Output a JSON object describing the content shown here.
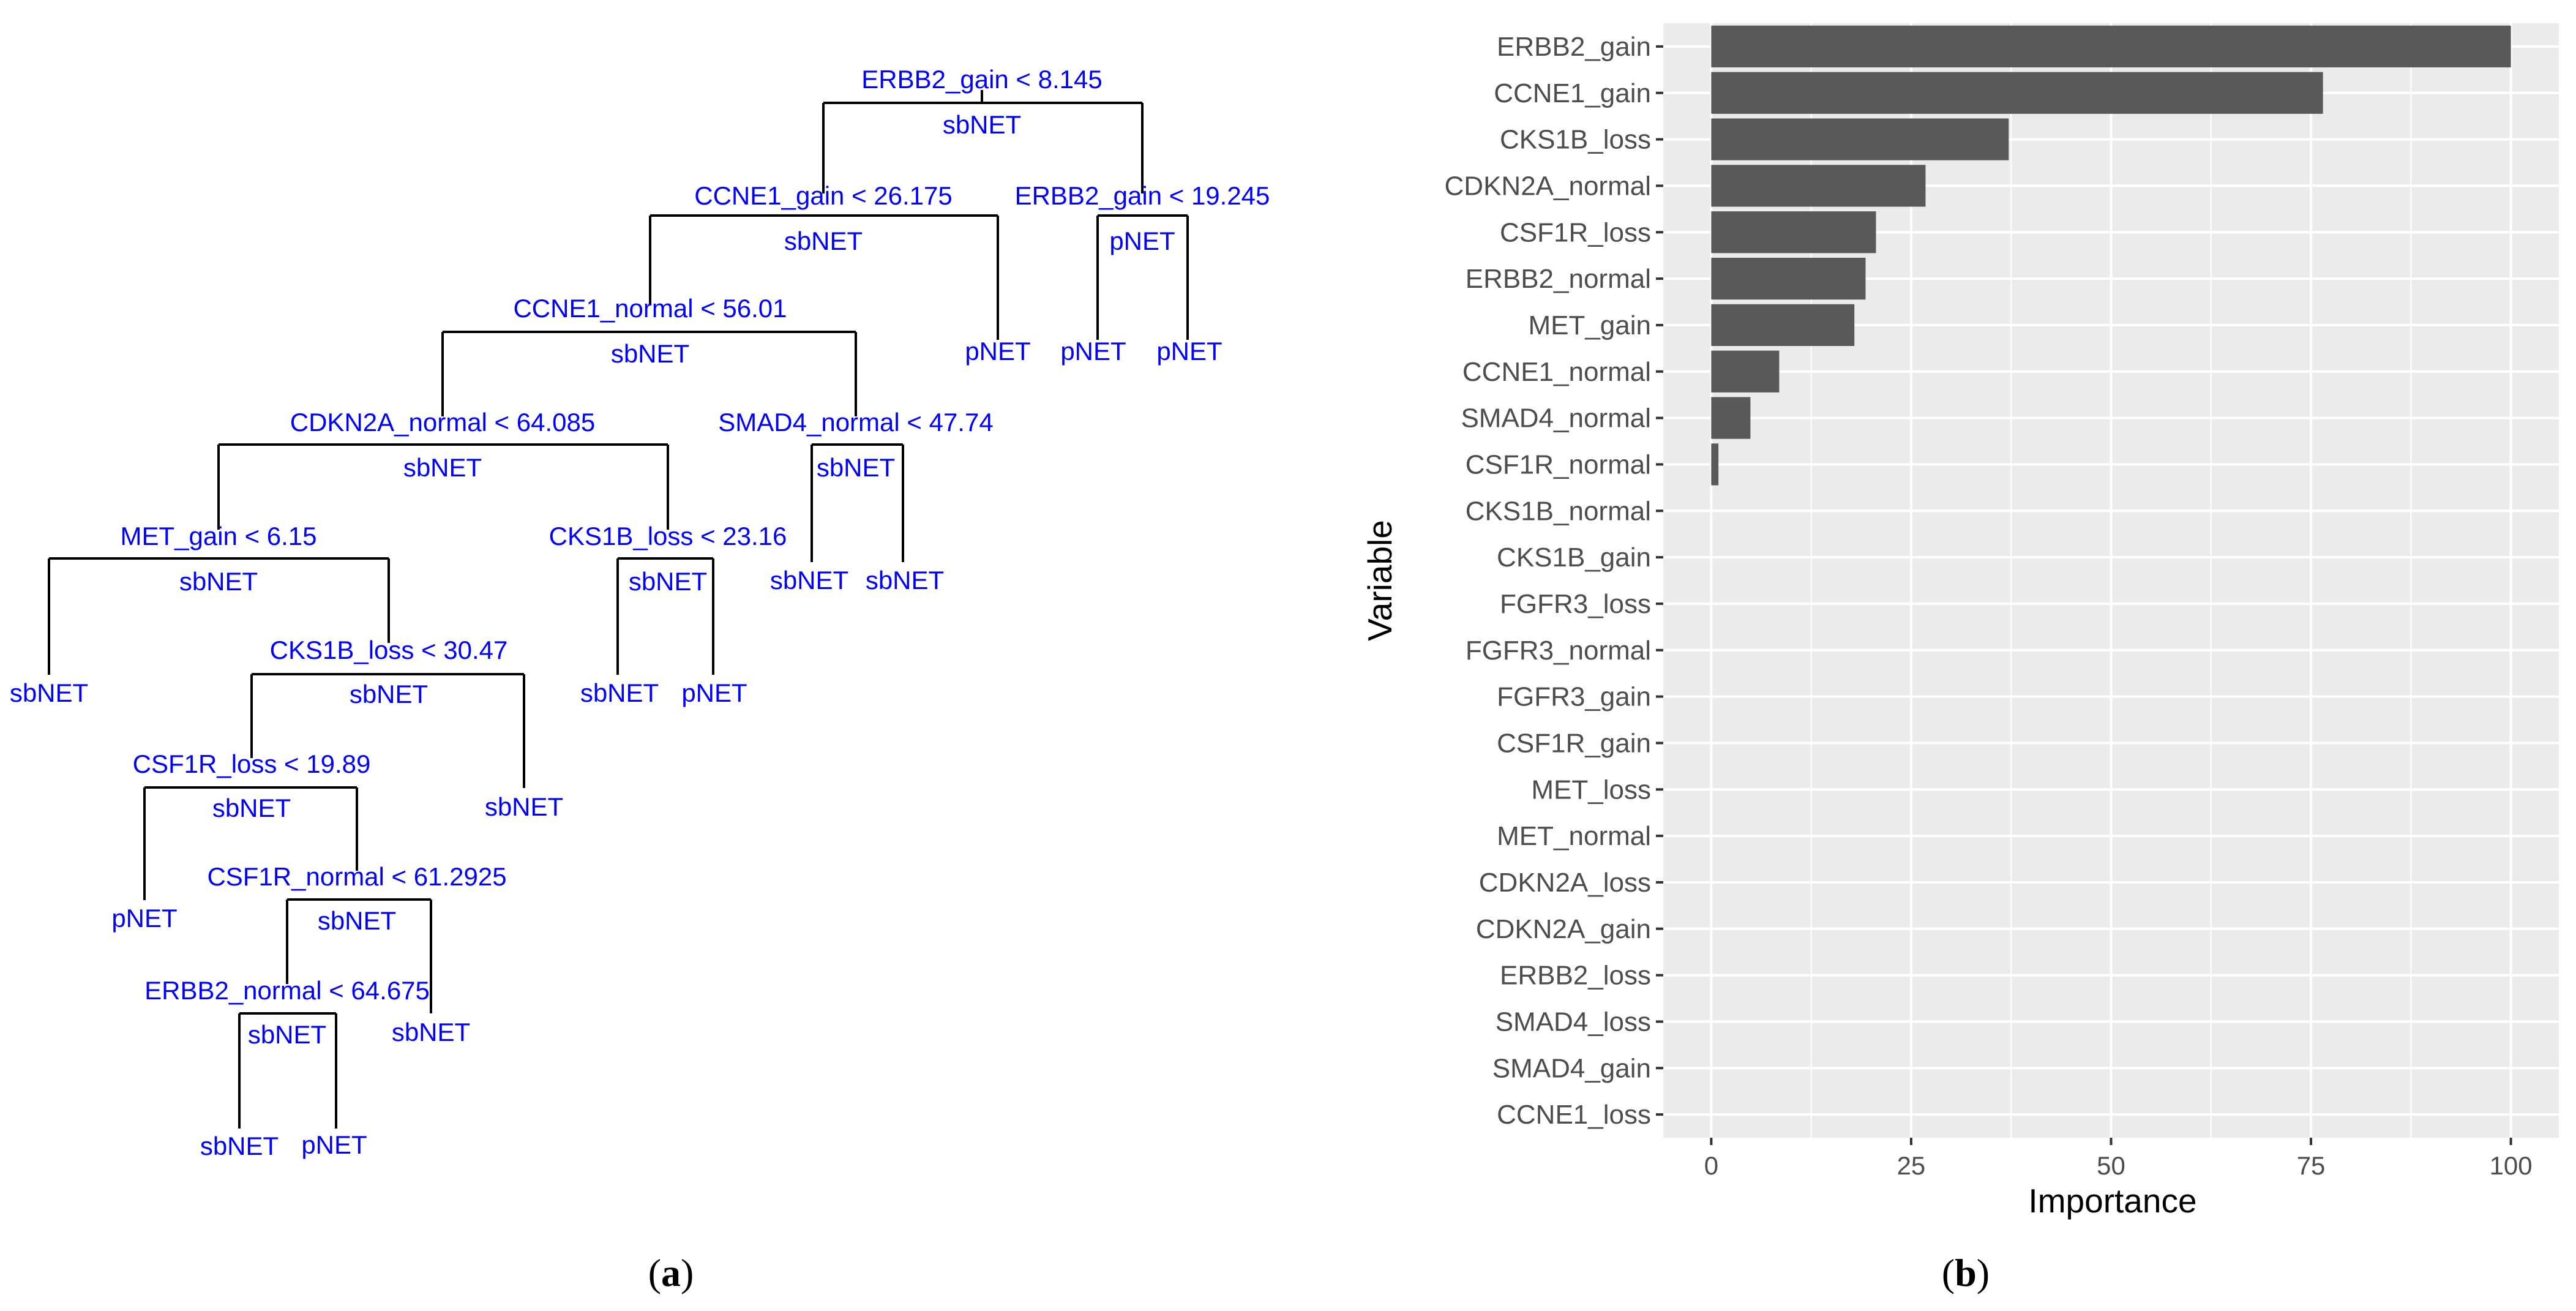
{
  "panel_labels": {
    "a": "a",
    "b": "b"
  },
  "tree": {
    "splits": [
      {
        "id": "n1",
        "rule": "ERBB2_gain < 8.145",
        "cls": "sbNET"
      },
      {
        "id": "n2",
        "rule": "CCNE1_gain < 26.175",
        "cls": "sbNET"
      },
      {
        "id": "n3",
        "rule": "ERBB2_gain < 19.245",
        "cls": "pNET"
      },
      {
        "id": "n4",
        "rule": "CCNE1_normal < 56.01",
        "cls": "sbNET"
      },
      {
        "id": "n5",
        "rule": "CDKN2A_normal < 64.085",
        "cls": "sbNET"
      },
      {
        "id": "n6",
        "rule": "SMAD4_normal < 47.74",
        "cls": "sbNET"
      },
      {
        "id": "n7",
        "rule": "MET_gain < 6.15",
        "cls": "sbNET"
      },
      {
        "id": "n8",
        "rule": "CKS1B_loss < 23.16",
        "cls": "sbNET"
      },
      {
        "id": "n9",
        "rule": "CKS1B_loss < 30.47",
        "cls": "sbNET"
      },
      {
        "id": "n10",
        "rule": "CSF1R_loss < 19.89",
        "cls": "sbNET"
      },
      {
        "id": "n11",
        "rule": "CSF1R_normal < 61.2925",
        "cls": "sbNET"
      },
      {
        "id": "n12",
        "rule": "ERBB2_normal < 64.675",
        "cls": "sbNET"
      }
    ],
    "leaves": [
      {
        "id": "l1",
        "cls": "pNET"
      },
      {
        "id": "l2",
        "cls": "pNET"
      },
      {
        "id": "l3",
        "cls": "pNET"
      },
      {
        "id": "l4",
        "cls": "sbNET"
      },
      {
        "id": "l5",
        "cls": "sbNET"
      },
      {
        "id": "l6",
        "cls": "sbNET"
      },
      {
        "id": "l7",
        "cls": "sbNET"
      },
      {
        "id": "l8",
        "cls": "pNET"
      },
      {
        "id": "l9",
        "cls": "sbNET"
      },
      {
        "id": "l10",
        "cls": "pNET"
      },
      {
        "id": "l11",
        "cls": "sbNET"
      },
      {
        "id": "l12",
        "cls": "sbNET"
      },
      {
        "id": "l13",
        "cls": "pNET"
      }
    ]
  },
  "chart_data": {
    "type": "bar",
    "orientation": "horizontal",
    "categories": [
      "ERBB2_gain",
      "CCNE1_gain",
      "CKS1B_loss",
      "CDKN2A_normal",
      "CSF1R_loss",
      "ERBB2_normal",
      "MET_gain",
      "CCNE1_normal",
      "SMAD4_normal",
      "CSF1R_normal",
      "CKS1B_normal",
      "CKS1B_gain",
      "FGFR3_loss",
      "FGFR3_normal",
      "FGFR3_gain",
      "CSF1R_gain",
      "MET_loss",
      "MET_normal",
      "CDKN2A_loss",
      "CDKN2A_gain",
      "ERBB2_loss",
      "SMAD4_loss",
      "SMAD4_gain",
      "CCNE1_loss"
    ],
    "values": [
      100,
      76.5,
      37.2,
      26.8,
      20.6,
      19.3,
      17.9,
      8.5,
      4.9,
      0.9,
      0,
      0,
      0,
      0,
      0,
      0,
      0,
      0,
      0,
      0,
      0,
      0,
      0,
      0
    ],
    "xlabel": "Importance",
    "ylabel": "Variable",
    "xlim": [
      -6,
      106
    ],
    "xticks": [
      0,
      25,
      50,
      75,
      100
    ],
    "xtick_labels": [
      "0",
      "25",
      "50",
      "75",
      "100"
    ],
    "grid": true,
    "bar_color": "#595959",
    "panel_bg": "#ebebeb",
    "grid_color": "#ffffff"
  }
}
